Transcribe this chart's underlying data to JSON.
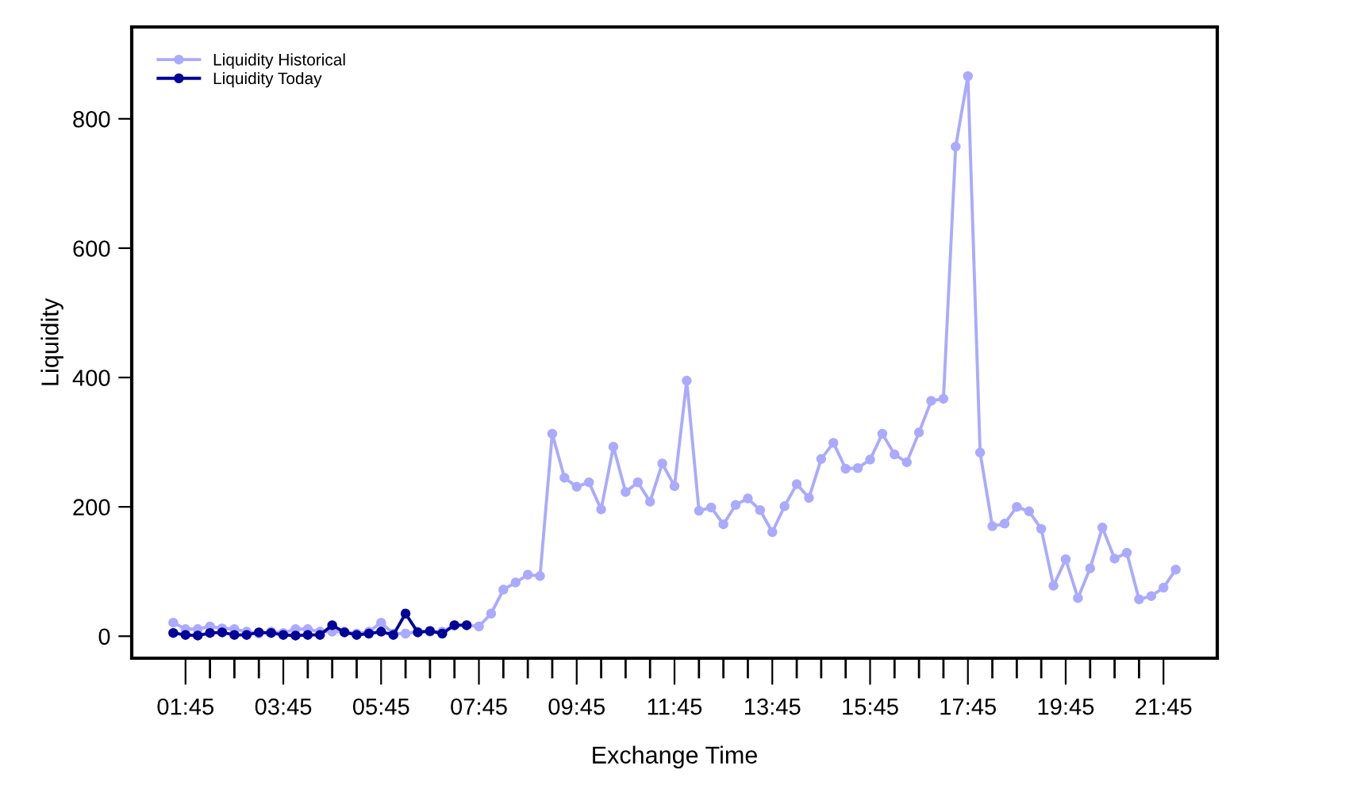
{
  "chart_data": {
    "type": "line",
    "xlabel": "Exchange Time",
    "ylabel": "Liquidity",
    "xlim": [
      0.65,
      22.85
    ],
    "ylim": [
      -34,
      942
    ],
    "xticks": [
      {
        "value": 1.75,
        "label": "01:45"
      },
      {
        "value": 2.25,
        "label": null
      },
      {
        "value": 2.75,
        "label": null
      },
      {
        "value": 3.25,
        "label": null
      },
      {
        "value": 3.75,
        "label": "03:45"
      },
      {
        "value": 4.25,
        "label": null
      },
      {
        "value": 4.75,
        "label": null
      },
      {
        "value": 5.25,
        "label": null
      },
      {
        "value": 5.75,
        "label": "05:45"
      },
      {
        "value": 6.25,
        "label": null
      },
      {
        "value": 6.75,
        "label": null
      },
      {
        "value": 7.25,
        "label": null
      },
      {
        "value": 7.75,
        "label": "07:45"
      },
      {
        "value": 8.25,
        "label": null
      },
      {
        "value": 8.75,
        "label": null
      },
      {
        "value": 9.25,
        "label": null
      },
      {
        "value": 9.75,
        "label": "09:45"
      },
      {
        "value": 10.25,
        "label": null
      },
      {
        "value": 10.75,
        "label": null
      },
      {
        "value": 11.25,
        "label": null
      },
      {
        "value": 11.75,
        "label": "11:45"
      },
      {
        "value": 12.25,
        "label": null
      },
      {
        "value": 12.75,
        "label": null
      },
      {
        "value": 13.25,
        "label": null
      },
      {
        "value": 13.75,
        "label": "13:45"
      },
      {
        "value": 14.25,
        "label": null
      },
      {
        "value": 14.75,
        "label": null
      },
      {
        "value": 15.25,
        "label": null
      },
      {
        "value": 15.75,
        "label": "15:45"
      },
      {
        "value": 16.25,
        "label": null
      },
      {
        "value": 16.75,
        "label": null
      },
      {
        "value": 17.25,
        "label": null
      },
      {
        "value": 17.75,
        "label": "17:45"
      },
      {
        "value": 18.25,
        "label": null
      },
      {
        "value": 18.75,
        "label": null
      },
      {
        "value": 19.25,
        "label": null
      },
      {
        "value": 19.75,
        "label": "19:45"
      },
      {
        "value": 20.25,
        "label": null
      },
      {
        "value": 20.75,
        "label": null
      },
      {
        "value": 21.25,
        "label": null
      },
      {
        "value": 21.75,
        "label": "21:45"
      }
    ],
    "yticks": [
      0,
      200,
      400,
      600,
      800
    ],
    "grid": false,
    "legend": "top left",
    "marker": "circle",
    "line_style": "solid",
    "series": [
      {
        "name": "Liquidity Historical",
        "color": "#aaaaff",
        "x": [
          1.5,
          1.75,
          2.0,
          2.25,
          2.5,
          2.75,
          3.0,
          3.25,
          3.5,
          3.75,
          4.0,
          4.25,
          4.5,
          4.75,
          5.0,
          5.25,
          5.5,
          5.75,
          6.0,
          6.25,
          6.5,
          6.75,
          7.0,
          7.25,
          7.5,
          7.75,
          8.0,
          8.25,
          8.5,
          8.75,
          9.0,
          9.25,
          9.5,
          9.75,
          10.0,
          10.25,
          10.5,
          10.75,
          11.0,
          11.25,
          11.5,
          11.75,
          12.0,
          12.25,
          12.5,
          12.75,
          13.0,
          13.25,
          13.5,
          13.75,
          14.0,
          14.25,
          14.5,
          14.75,
          15.0,
          15.25,
          15.5,
          15.75,
          16.0,
          16.25,
          16.5,
          16.75,
          17.0,
          17.25,
          17.5,
          17.75,
          18.0,
          18.25,
          18.5,
          18.75,
          19.0,
          19.25,
          19.5,
          19.75,
          20.0,
          20.25,
          20.5,
          20.75,
          21.0,
          21.25,
          21.5,
          21.75,
          22.0
        ],
        "values": [
          21,
          11,
          11,
          15,
          12,
          11,
          7,
          4,
          7,
          5,
          11,
          11,
          7,
          7,
          7,
          4,
          7,
          21,
          4,
          4,
          7,
          7,
          7,
          17,
          17,
          15,
          35,
          72,
          83,
          95,
          93,
          313,
          245,
          231,
          238,
          196,
          293,
          223,
          238,
          208,
          267,
          232,
          395,
          194,
          199,
          173,
          203,
          213,
          195,
          161,
          201,
          235,
          214,
          274,
          299,
          259,
          260,
          273,
          313,
          281,
          269,
          315,
          364,
          367,
          757,
          866,
          284,
          170,
          174,
          200,
          193,
          166,
          78,
          119,
          59,
          105,
          168,
          120,
          129,
          57,
          62,
          75,
          103
        ]
      },
      {
        "name": "Liquidity Today",
        "color": "#000099",
        "x": [
          1.5,
          1.75,
          2.0,
          2.25,
          2.5,
          2.75,
          3.0,
          3.25,
          3.5,
          3.75,
          4.0,
          4.25,
          4.5,
          4.75,
          5.0,
          5.25,
          5.5,
          5.75,
          6.0,
          6.25,
          6.5,
          6.75,
          7.0,
          7.25,
          7.5
        ],
        "values": [
          5,
          2,
          1,
          5,
          6,
          2,
          2,
          6,
          5,
          2,
          1,
          2,
          2,
          17,
          6,
          2,
          4,
          7,
          2,
          35,
          6,
          8,
          4,
          17,
          17
        ]
      }
    ]
  }
}
